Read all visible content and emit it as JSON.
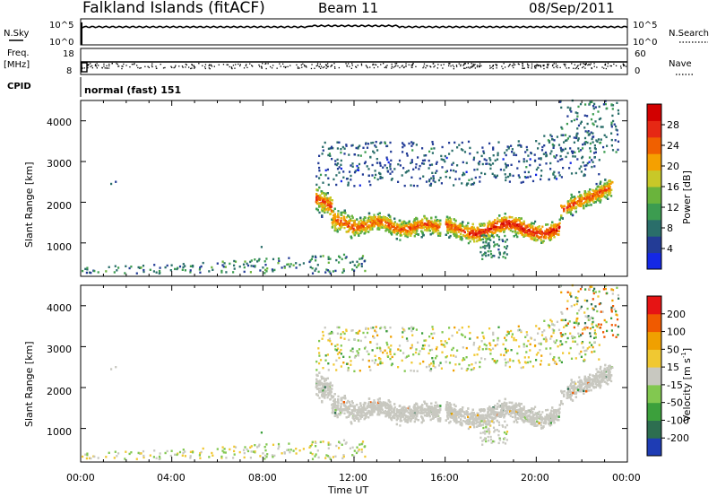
{
  "header": {
    "station": "Falkland Islands (fitACF)",
    "beam": "Beam 11",
    "date": "08/Sep/2011"
  },
  "sky_panel": {
    "left_label": "N.Sky",
    "right_label": "N.Search",
    "ticks": [
      "10^5",
      "10^0"
    ]
  },
  "freq_panel": {
    "left_label_top": "Freq.",
    "left_label_unit": "[MHz]",
    "left_ticks": [
      "18",
      "8"
    ],
    "right_label": "Nave",
    "right_ticks": [
      "60",
      "0"
    ]
  },
  "cpid_panel": {
    "label": "CPID",
    "mode_text": "normal (fast) 151"
  },
  "power_panel": {
    "ylabel": "Slant Range [km]",
    "yticks": [
      "4000",
      "3000",
      "2000",
      "1000"
    ],
    "colorbar_label": "Power [dB]",
    "colorbar_ticks": [
      "28",
      "24",
      "20",
      "16",
      "12",
      "8",
      "4"
    ],
    "colors": [
      "#1428e6",
      "#233c96",
      "#2a6e6a",
      "#3c9c50",
      "#6ab43c",
      "#c8c828",
      "#f5a000",
      "#f06000",
      "#e62814",
      "#d20000"
    ]
  },
  "velocity_panel": {
    "ylabel": "Slant Range [km]",
    "yticks": [
      "4000",
      "3000",
      "2000",
      "1000"
    ],
    "colorbar_label": "Velocity [m s",
    "colorbar_label_sup": "-1",
    "colorbar_label_end": "]",
    "colorbar_ticks": [
      "200",
      "100",
      "50",
      "15",
      "-15",
      "-50",
      "-100",
      "-200"
    ],
    "colors": [
      "#1e3cb4",
      "#2d6e50",
      "#3ca03c",
      "#82c850",
      "#c8c8c0",
      "#f0c832",
      "#f0a000",
      "#f05a00",
      "#e61414"
    ]
  },
  "x_axis": {
    "ticks": [
      "00:00",
      "04:00",
      "08:00",
      "12:00",
      "16:00",
      "20:00",
      "00:00"
    ],
    "label": "Time UT"
  },
  "chart_data": {
    "type": "heatmap",
    "x_range_hours": [
      0,
      24
    ],
    "y_range_km": [
      180,
      4500
    ],
    "power_range_db": [
      0,
      32
    ],
    "velocity_range_ms": [
      -250,
      250
    ]
  }
}
